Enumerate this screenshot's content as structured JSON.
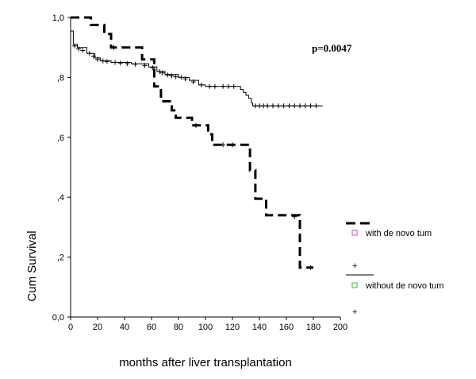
{
  "chart_data": {
    "type": "line",
    "title": "",
    "xlabel": "months after liver transplantation",
    "ylabel": "Cum Survival",
    "xlim": [
      0,
      200
    ],
    "ylim": [
      0,
      1.0
    ],
    "x_ticks": [
      "0",
      "20",
      "40",
      "60",
      "80",
      "100",
      "120",
      "140",
      "160",
      "180",
      "200"
    ],
    "y_ticks": [
      "0,0",
      ",2",
      ",4",
      ",6",
      ",8",
      "1,0"
    ],
    "annotation": "p=0.0047",
    "grid": false,
    "legend_position": "right",
    "legend_markers": [
      "+",
      "+"
    ],
    "series": [
      {
        "name": "with de novo tum",
        "style": "dashed",
        "color": "#000000",
        "marker_color": "#cc44cc",
        "steps": [
          [
            0,
            1.0
          ],
          [
            15,
            0.975
          ],
          [
            25,
            0.945
          ],
          [
            30,
            0.9
          ],
          [
            50,
            0.9
          ],
          [
            53,
            0.86
          ],
          [
            62,
            0.77
          ],
          [
            67,
            0.72
          ],
          [
            75,
            0.69
          ],
          [
            78,
            0.665
          ],
          [
            90,
            0.64
          ],
          [
            102,
            0.61
          ],
          [
            105,
            0.575
          ],
          [
            128,
            0.575
          ],
          [
            133,
            0.49
          ],
          [
            137,
            0.395
          ],
          [
            145,
            0.34
          ],
          [
            170,
            0.335
          ],
          [
            170,
            0.165
          ],
          [
            180,
            0.165
          ]
        ],
        "censored": [
          [
            32,
            0.9
          ],
          [
            93,
            0.64
          ],
          [
            113,
            0.575
          ],
          [
            120,
            0.575
          ],
          [
            166,
            0.335
          ],
          [
            178,
            0.165
          ]
        ]
      },
      {
        "name": "without de novo tum",
        "style": "solid",
        "color": "#000000",
        "marker_color": "#33cc33",
        "steps": [
          [
            0,
            0.955
          ],
          [
            2,
            0.91
          ],
          [
            5,
            0.9
          ],
          [
            12,
            0.88
          ],
          [
            18,
            0.865
          ],
          [
            22,
            0.855
          ],
          [
            30,
            0.85
          ],
          [
            45,
            0.845
          ],
          [
            58,
            0.835
          ],
          [
            64,
            0.82
          ],
          [
            70,
            0.81
          ],
          [
            80,
            0.8
          ],
          [
            88,
            0.79
          ],
          [
            95,
            0.775
          ],
          [
            100,
            0.77
          ],
          [
            110,
            0.77
          ],
          [
            124,
            0.77
          ],
          [
            126,
            0.76
          ],
          [
            128,
            0.75
          ],
          [
            130,
            0.74
          ],
          [
            132,
            0.73
          ],
          [
            134,
            0.715
          ],
          [
            135,
            0.705
          ],
          [
            187,
            0.705
          ]
        ],
        "censored": [
          [
            3,
            0.905
          ],
          [
            6,
            0.895
          ],
          [
            9,
            0.89
          ],
          [
            14,
            0.88
          ],
          [
            17,
            0.87
          ],
          [
            20,
            0.86
          ],
          [
            24,
            0.855
          ],
          [
            27,
            0.853
          ],
          [
            33,
            0.85
          ],
          [
            37,
            0.848
          ],
          [
            42,
            0.846
          ],
          [
            48,
            0.844
          ],
          [
            55,
            0.84
          ],
          [
            61,
            0.832
          ],
          [
            66,
            0.82
          ],
          [
            68,
            0.815
          ],
          [
            72,
            0.808
          ],
          [
            75,
            0.805
          ],
          [
            78,
            0.802
          ],
          [
            82,
            0.8
          ],
          [
            85,
            0.795
          ],
          [
            91,
            0.785
          ],
          [
            97,
            0.775
          ],
          [
            103,
            0.77
          ],
          [
            107,
            0.77
          ],
          [
            113,
            0.77
          ],
          [
            117,
            0.77
          ],
          [
            121,
            0.77
          ],
          [
            137,
            0.705
          ],
          [
            140,
            0.705
          ],
          [
            143,
            0.705
          ],
          [
            146,
            0.705
          ],
          [
            150,
            0.705
          ],
          [
            154,
            0.705
          ],
          [
            158,
            0.705
          ],
          [
            162,
            0.705
          ],
          [
            166,
            0.705
          ],
          [
            170,
            0.705
          ],
          [
            174,
            0.705
          ],
          [
            178,
            0.705
          ],
          [
            182,
            0.705
          ]
        ]
      }
    ]
  }
}
